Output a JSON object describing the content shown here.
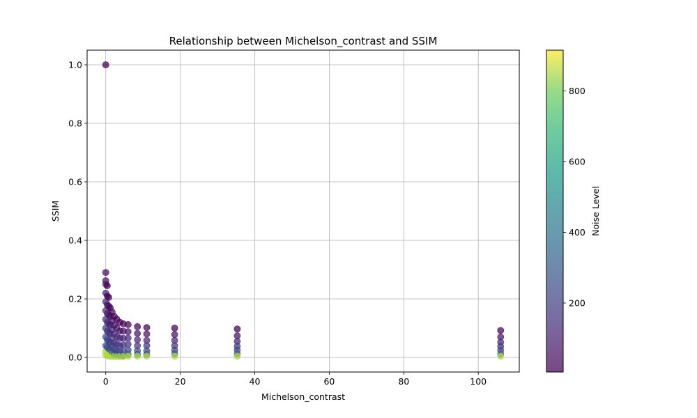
{
  "chart_data": {
    "type": "scatter",
    "title": "Relationship between Michelson_contrast and SSIM",
    "xlabel": "Michelson_contrast",
    "ylabel": "SSIM",
    "xlim": [
      -5,
      111
    ],
    "ylim": [
      -0.05,
      1.05
    ],
    "xticks": [
      0,
      20,
      40,
      60,
      80,
      100
    ],
    "yticks": [
      0.0,
      0.2,
      0.4,
      0.6,
      0.8,
      1.0
    ],
    "grid": true,
    "colorbar": {
      "label": "Noise Level",
      "colormap": "viridis",
      "range": [
        5,
        915
      ],
      "ticks": [
        200,
        400,
        600,
        800
      ]
    },
    "columns": [
      {
        "x": 0.0,
        "ssim": [
          1.0,
          0.29,
          0.262,
          0.25,
          0.22,
          0.19,
          0.16,
          0.13,
          0.1,
          0.07,
          0.04,
          0.02,
          0.008
        ]
      },
      {
        "x": 0.4,
        "ssim": [
          0.245,
          0.21,
          0.18,
          0.15,
          0.12,
          0.09,
          0.06,
          0.035,
          0.015,
          0.006
        ]
      },
      {
        "x": 0.8,
        "ssim": [
          0.205,
          0.175,
          0.145,
          0.115,
          0.085,
          0.055,
          0.03,
          0.012,
          0.005
        ]
      },
      {
        "x": 1.2,
        "ssim": [
          0.17,
          0.14,
          0.11,
          0.08,
          0.05,
          0.025,
          0.01,
          0.004
        ]
      },
      {
        "x": 1.7,
        "ssim": [
          0.155,
          0.125,
          0.095,
          0.065,
          0.04,
          0.018,
          0.004
        ]
      },
      {
        "x": 2.3,
        "ssim": [
          0.14,
          0.11,
          0.08,
          0.05,
          0.028,
          0.01,
          0.003
        ]
      },
      {
        "x": 3.0,
        "ssim": [
          0.13,
          0.1,
          0.07,
          0.045,
          0.022,
          0.008,
          0.003
        ]
      },
      {
        "x": 3.8,
        "ssim": [
          0.12,
          0.09,
          0.065,
          0.04,
          0.02,
          0.007,
          0.003
        ]
      },
      {
        "x": 4.7,
        "ssim": [
          0.115,
          0.09,
          0.065,
          0.042,
          0.02,
          0.006,
          0.003
        ]
      },
      {
        "x": 6.0,
        "ssim": [
          0.112,
          0.088,
          0.066,
          0.045,
          0.025,
          0.01,
          0.004
        ]
      },
      {
        "x": 8.5,
        "ssim": [
          0.105,
          0.082,
          0.06,
          0.04,
          0.022,
          0.01,
          0.004
        ]
      },
      {
        "x": 11.0,
        "ssim": [
          0.102,
          0.08,
          0.058,
          0.04,
          0.022,
          0.01,
          0.004
        ]
      },
      {
        "x": 18.5,
        "ssim": [
          0.1,
          0.078,
          0.058,
          0.04,
          0.025,
          0.012,
          0.004
        ]
      },
      {
        "x": 35.3,
        "ssim": [
          0.097,
          0.074,
          0.055,
          0.038,
          0.025,
          0.012,
          0.004
        ]
      },
      {
        "x": 106.0,
        "ssim": [
          0.092,
          0.07,
          0.052,
          0.038,
          0.025,
          0.012,
          0.004
        ]
      }
    ]
  }
}
